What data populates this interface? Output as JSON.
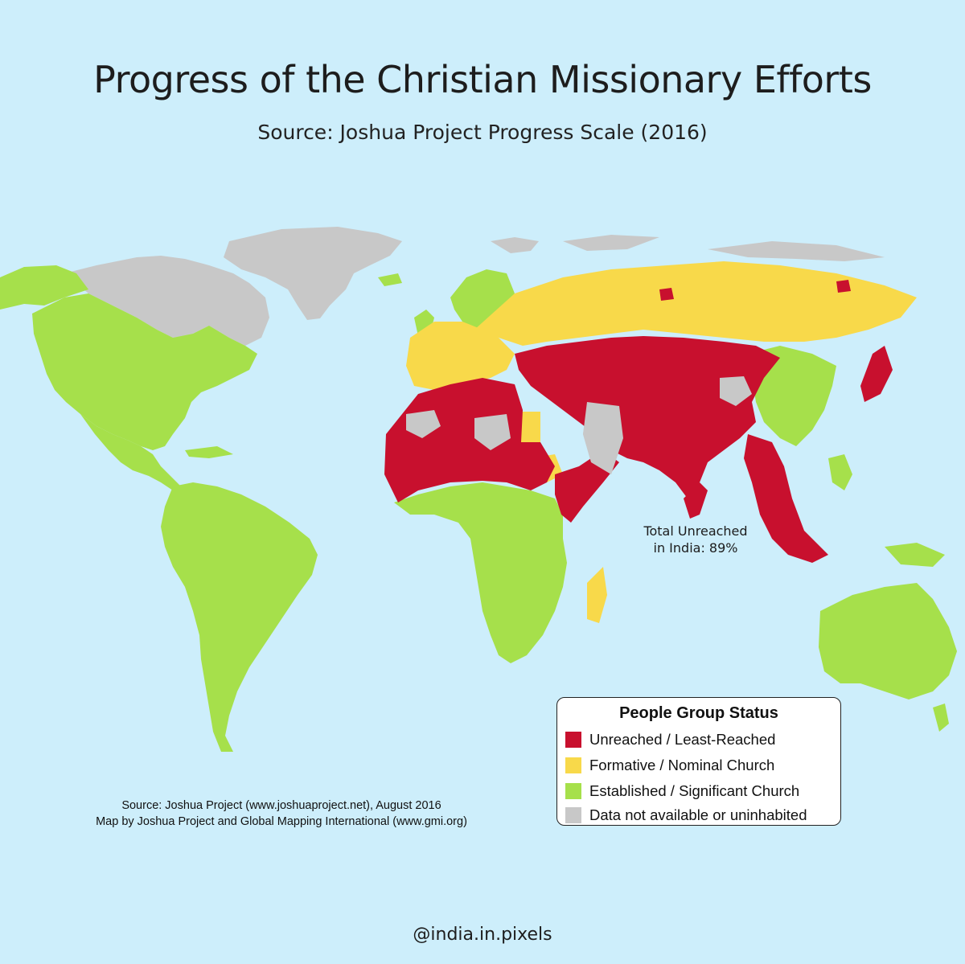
{
  "title": "Progress of the Christian Missionary Efforts",
  "subtitle": "Source: Joshua Project Progress Scale (2016)",
  "colors": {
    "ocean": "#cdeefb",
    "unreached": "#c8102e",
    "formative": "#f8d94a",
    "established": "#a6e04b",
    "no_data": "#c8c8c8"
  },
  "annotation": {
    "line1": "Total Unreached",
    "line2": "in India: 89%"
  },
  "legend": {
    "title": "People Group Status",
    "items": [
      {
        "label": "Unreached / Least-Reached",
        "color": "#c8102e"
      },
      {
        "label": "Formative / Nominal Church",
        "color": "#f8d94a"
      },
      {
        "label": "Established / Significant Church",
        "color": "#a6e04b"
      },
      {
        "label": "Data not available or uninhabited",
        "color": "#c8c8c8"
      }
    ]
  },
  "source": {
    "line1": "Source: Joshua Project (www.joshuaproject.net), August 2016",
    "line2": "Map by Joshua Project and Global Mapping International (www.gmi.org)"
  },
  "handle": "@india.in.pixels"
}
